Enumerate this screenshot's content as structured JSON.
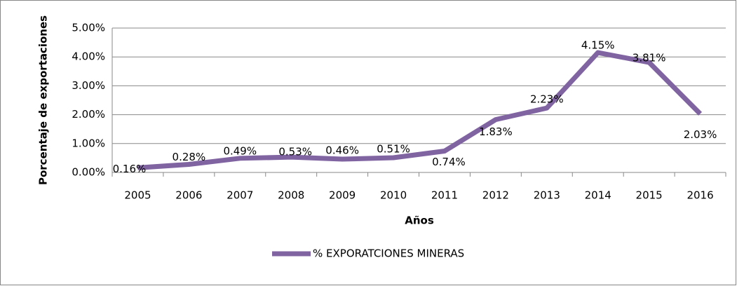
{
  "chart_data": {
    "type": "line",
    "y_axis_label": "Porcentaje de exportaciones",
    "x_axis_label": "Años",
    "categories": [
      "2005",
      "2006",
      "2007",
      "2008",
      "2009",
      "2010",
      "2011",
      "2012",
      "2013",
      "2014",
      "2015",
      "2016"
    ],
    "series": [
      {
        "name": "% EXPORATCIONES MINERAS",
        "color": "#8064a2",
        "values": [
          0.16,
          0.28,
          0.49,
          0.53,
          0.46,
          0.51,
          0.74,
          1.83,
          2.23,
          4.15,
          3.81,
          2.03
        ],
        "value_labels": [
          "0.16%",
          "0.28%",
          "0.49%",
          "0.53%",
          "0.46%",
          "0.51%",
          "0.74%",
          "1.83%",
          "2.23%",
          "4.15%",
          "3.81%",
          "2.03%"
        ]
      }
    ],
    "ylim": [
      0,
      5
    ],
    "yticks": [
      {
        "value": 0,
        "label": "0.00%"
      },
      {
        "value": 1,
        "label": "1.00%"
      },
      {
        "value": 2,
        "label": "2.00%"
      },
      {
        "value": 3,
        "label": "3.00%"
      },
      {
        "value": 4,
        "label": "4.00%"
      },
      {
        "value": 5,
        "label": "5.00%"
      }
    ],
    "grid": true,
    "legend": "bottom"
  }
}
